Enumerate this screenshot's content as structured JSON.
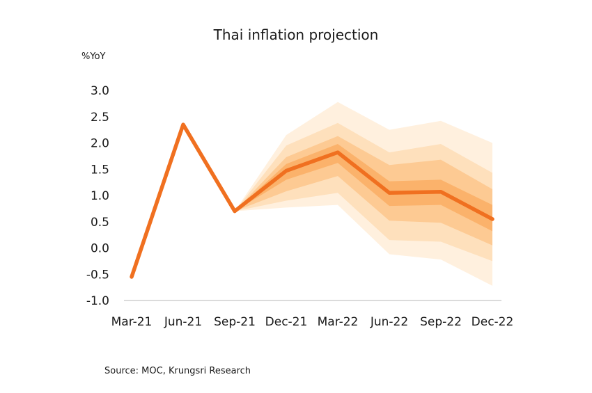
{
  "chart_data": {
    "type": "line",
    "title": "Thai inflation projection",
    "ylabel": "%YoY",
    "source": "Source:  MOC, Krungsri Research",
    "categories": [
      "Mar-21",
      "Jun-21",
      "Sep-21",
      "Dec-21",
      "Mar-22",
      "Jun-22",
      "Sep-22",
      "Dec-22"
    ],
    "y_ticks": [
      "3.0",
      "2.5",
      "2.0",
      "1.5",
      "1.0",
      "0.5",
      "0.0",
      "-0.5",
      "-1.0"
    ],
    "ylim": [
      -1.0,
      3.0
    ],
    "grid": false,
    "series": [
      {
        "values": [
          -0.55,
          2.35,
          0.7,
          1.47,
          1.82,
          1.05,
          1.07,
          0.55
        ]
      }
    ],
    "fan_bands": [
      {
        "start_index": 2,
        "upper": [
          0.7,
          2.15,
          2.78,
          2.25,
          2.42,
          2.0
        ],
        "lower": [
          0.7,
          0.77,
          0.82,
          -0.12,
          -0.22,
          -0.72
        ]
      },
      {
        "start_index": 2,
        "upper": [
          0.7,
          1.95,
          2.38,
          1.82,
          1.98,
          1.43
        ],
        "lower": [
          0.7,
          0.9,
          1.05,
          0.15,
          0.12,
          -0.25
        ]
      },
      {
        "start_index": 2,
        "upper": [
          0.7,
          1.73,
          2.13,
          1.58,
          1.68,
          1.12
        ],
        "lower": [
          0.7,
          1.08,
          1.37,
          0.52,
          0.48,
          0.05
        ]
      },
      {
        "start_index": 2,
        "upper": [
          0.7,
          1.6,
          1.98,
          1.27,
          1.3,
          0.82
        ],
        "lower": [
          0.7,
          1.3,
          1.62,
          0.8,
          0.82,
          0.32
        ]
      }
    ],
    "colors": {
      "line": "#f07020",
      "bands": [
        "#fff0de",
        "#fee0bc",
        "#fdca93",
        "#fbb26b"
      ],
      "axis": "#cfcfcf"
    }
  }
}
